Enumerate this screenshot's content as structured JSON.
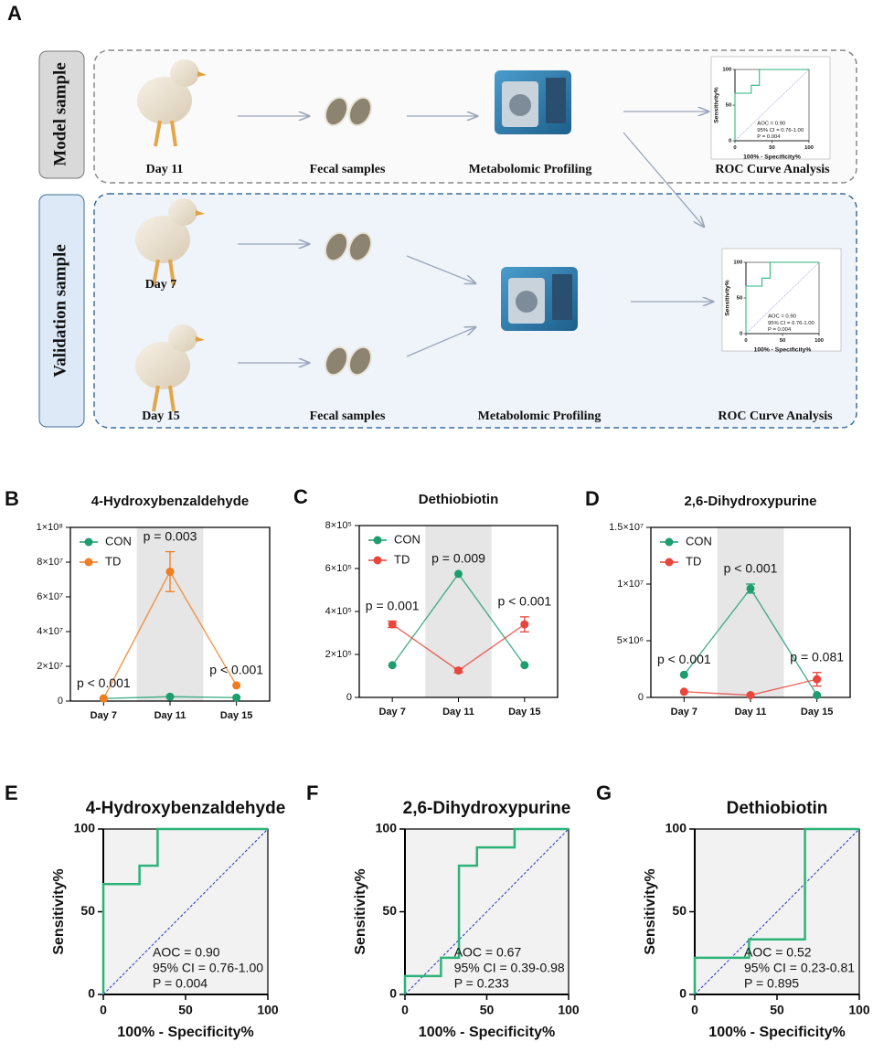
{
  "panel_a": {
    "label": "A",
    "model_label": "Model sample",
    "validation_label": "Validation sample",
    "model_row": {
      "day": "Day 11",
      "sample": "Fecal samples",
      "method": "Metabolomic Profiling",
      "analysis": "ROC Curve Analysis"
    },
    "validation_row": {
      "days": [
        "Day 7",
        "Day 15"
      ],
      "sample": "Fecal samples",
      "method": "Metabolomic Profiling",
      "analysis": "ROC Curve Analysis"
    },
    "roc_thumbs": [
      {
        "type": "roc",
        "xlabel": "100% - Specificity%",
        "ylabel": "Sensitivity%",
        "annotations": [
          "AOC = 0.90",
          "95% CI = 0.76-1.00",
          "P = 0.004"
        ],
        "x": [
          0,
          0,
          22,
          22,
          33,
          33,
          100
        ],
        "y": [
          0,
          66.7,
          66.7,
          77.8,
          77.8,
          100,
          100
        ],
        "xlim": [
          0,
          100
        ],
        "ylim": [
          0,
          100
        ],
        "xticks": [
          0,
          50,
          100
        ],
        "yticks": [
          0,
          50,
          100
        ],
        "color": "#2db37a"
      },
      {
        "type": "roc",
        "xlabel": "100% - Specificity%",
        "ylabel": "Sensitivity%",
        "annotations": [
          "AOC = 0.90",
          "95% CI = 0.76-1.00",
          "P = 0.004"
        ],
        "x": [
          0,
          0,
          22,
          22,
          33,
          33,
          100
        ],
        "y": [
          0,
          66.7,
          66.7,
          77.8,
          77.8,
          100,
          100
        ],
        "xlim": [
          0,
          100
        ],
        "ylim": [
          0,
          100
        ],
        "xticks": [
          0,
          50,
          100
        ],
        "yticks": [
          0,
          50,
          100
        ],
        "color": "#2db37a"
      }
    ]
  },
  "chart_data": [
    {
      "type": "line",
      "panel": "B",
      "title": "4-Hydroxybenzaldehyde",
      "categories": [
        "Day 7",
        "Day 11",
        "Day 15"
      ],
      "series": [
        {
          "name": "CON",
          "color": "#1e9e6e",
          "values": [
            1500000,
            2500000,
            2000000
          ],
          "errors": [
            null,
            null,
            null
          ]
        },
        {
          "name": "TD",
          "color": "#f07d1f",
          "values": [
            1500000,
            74500000,
            9000000
          ],
          "errors": [
            null,
            11500000,
            null
          ]
        }
      ],
      "p_values": [
        "p < 0.001",
        "p = 0.003",
        "p < 0.001"
      ],
      "shaded_category": 1,
      "legend": "upper left",
      "ylim": [
        0,
        100000000
      ],
      "yticks": [
        0,
        {
          "value": 20000000,
          "label": "2×10⁷"
        },
        {
          "value": 40000000,
          "label": "4×10⁷"
        },
        {
          "value": 60000000,
          "label": "6×10⁷"
        },
        {
          "value": 80000000,
          "label": "8×10⁷"
        },
        {
          "value": 100000000,
          "label": "1×10⁸"
        }
      ]
    },
    {
      "type": "line",
      "panel": "C",
      "title": "Dethiobiotin",
      "categories": [
        "Day 7",
        "Day 11",
        "Day 15"
      ],
      "series": [
        {
          "name": "CON",
          "color": "#1e9e6e",
          "values": [
            150000,
            575000,
            150000
          ],
          "errors": [
            null,
            null,
            null
          ]
        },
        {
          "name": "TD",
          "color": "#e8453c",
          "values": [
            340000,
            125000,
            340000
          ],
          "errors": [
            15000,
            10000,
            35000
          ]
        }
      ],
      "p_values": [
        "p = 0.001",
        "p = 0.009",
        "p < 0.001"
      ],
      "shaded_category": 1,
      "legend": "upper left",
      "ylim": [
        0,
        800000
      ],
      "yticks": [
        0,
        {
          "value": 200000,
          "label": "2×10⁵"
        },
        {
          "value": 400000,
          "label": "4×10⁵"
        },
        {
          "value": 600000,
          "label": "6×10⁵"
        },
        {
          "value": 800000,
          "label": "8×10⁵"
        }
      ]
    },
    {
      "type": "line",
      "panel": "D",
      "title": "2,6-Dihydroxypurine",
      "categories": [
        "Day 7",
        "Day 11",
        "Day 15"
      ],
      "series": [
        {
          "name": "CON",
          "color": "#1e9e6e",
          "values": [
            2000000,
            9600000,
            200000
          ],
          "errors": [
            null,
            400000,
            null
          ]
        },
        {
          "name": "TD",
          "color": "#e8453c",
          "values": [
            500000,
            200000,
            1600000
          ],
          "errors": [
            null,
            null,
            600000
          ]
        }
      ],
      "p_values": [
        "p < 0.001",
        "p < 0.001",
        "p = 0.081"
      ],
      "shaded_category": 1,
      "legend": "upper left",
      "ylim": [
        0,
        15000000
      ],
      "yticks": [
        0,
        {
          "value": 5000000,
          "label": "5×10⁶"
        },
        {
          "value": 10000000,
          "label": "1×10⁷"
        },
        {
          "value": 15000000,
          "label": "1.5×10⁷"
        }
      ]
    },
    {
      "type": "roc",
      "panel": "E",
      "title": "4-Hydroxybenzaldehyde",
      "xlabel": "100% - Specificity%",
      "ylabel": "Sensitivity%",
      "annotations": [
        "AOC = 0.90",
        "95% CI = 0.76-1.00",
        "P = 0.004"
      ],
      "x": [
        0,
        0,
        22,
        22,
        33,
        33,
        100
      ],
      "y": [
        0,
        66.7,
        66.7,
        77.8,
        77.8,
        100,
        100
      ],
      "xlim": [
        0,
        100
      ],
      "ylim": [
        0,
        100
      ],
      "xticks": [
        0,
        50,
        100
      ],
      "yticks": [
        0,
        50,
        100
      ],
      "color": "#2db37a"
    },
    {
      "type": "roc",
      "panel": "F",
      "title": "2,6-Dihydroxypurine",
      "xlabel": "100% - Specificity%",
      "ylabel": "Sensitivity%",
      "annotations": [
        "AOC = 0.67",
        "95% CI = 0.39-0.98",
        "P = 0.233"
      ],
      "x": [
        0,
        0,
        22,
        22,
        33,
        33,
        44,
        44,
        67,
        67,
        100
      ],
      "y": [
        0,
        11.1,
        11.1,
        22.2,
        22.2,
        77.8,
        77.8,
        88.9,
        88.9,
        100,
        100
      ],
      "xlim": [
        0,
        100
      ],
      "ylim": [
        0,
        100
      ],
      "xticks": [
        0,
        50,
        100
      ],
      "yticks": [
        0,
        50,
        100
      ],
      "color": "#2db37a"
    },
    {
      "type": "roc",
      "panel": "G",
      "title": "Dethiobiotin",
      "xlabel": "100% - Specificity%",
      "ylabel": "Sensitivity%",
      "annotations": [
        "AOC = 0.52",
        "95% CI = 0.23-0.81",
        "P = 0.895"
      ],
      "x": [
        0,
        0,
        33,
        33,
        67,
        67,
        100
      ],
      "y": [
        0,
        22.2,
        22.2,
        33.3,
        33.3,
        100,
        100
      ],
      "xlim": [
        0,
        100
      ],
      "ylim": [
        0,
        100
      ],
      "xticks": [
        0,
        50,
        100
      ],
      "yticks": [
        0,
        50,
        100
      ],
      "color": "#2db37a"
    }
  ]
}
